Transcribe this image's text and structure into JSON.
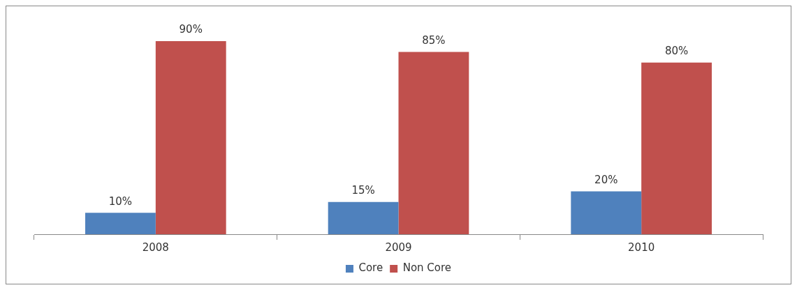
{
  "chart_data": {
    "type": "bar",
    "categories": [
      "2008",
      "2009",
      "2010"
    ],
    "series": [
      {
        "name": "Core",
        "color": "#4f81bd",
        "values": [
          10,
          15,
          20
        ],
        "value_labels": [
          "10%",
          "15%",
          "20%"
        ]
      },
      {
        "name": "Non Core",
        "color": "#c0504d",
        "values": [
          90,
          85,
          80
        ],
        "value_labels": [
          "90%",
          "85%",
          "80%"
        ]
      }
    ],
    "legend": "bottom",
    "grid": false
  }
}
